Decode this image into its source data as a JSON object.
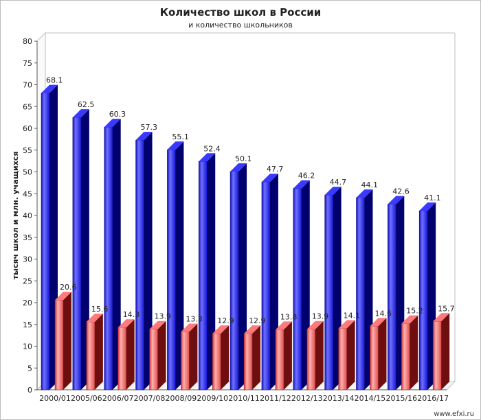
{
  "chart_data": {
    "type": "bar",
    "title": "Количество школ в России",
    "subtitle": "и количество школьников",
    "ylabel": "тысяч школ и млн. учащихся",
    "ylim": [
      0,
      80
    ],
    "yticks": [
      0,
      5,
      10,
      15,
      20,
      25,
      30,
      35,
      40,
      45,
      50,
      55,
      60,
      65,
      70,
      75,
      80
    ],
    "grid": false,
    "legend": "none",
    "categories": [
      "2000/01",
      "2005/06",
      "2006/07",
      "2007/08",
      "2008/09",
      "2009/10",
      "2010/11",
      "2011/12",
      "2012/13",
      "2013/14",
      "2014/15",
      "2015/16",
      "2016/17"
    ],
    "series": [
      {
        "values": [
          68.1,
          62.5,
          60.3,
          57.3,
          55.1,
          52.4,
          50.1,
          47.7,
          46.2,
          44.7,
          44.1,
          42.6,
          41.1
        ],
        "color": "#2222ee"
      },
      {
        "values": [
          20.6,
          15.6,
          14.3,
          13.9,
          13.3,
          12.9,
          12.9,
          13.8,
          13.9,
          14.1,
          14.6,
          15.2,
          15.7
        ],
        "color": "#e84848"
      }
    ],
    "source": "www.efxi.ru"
  }
}
